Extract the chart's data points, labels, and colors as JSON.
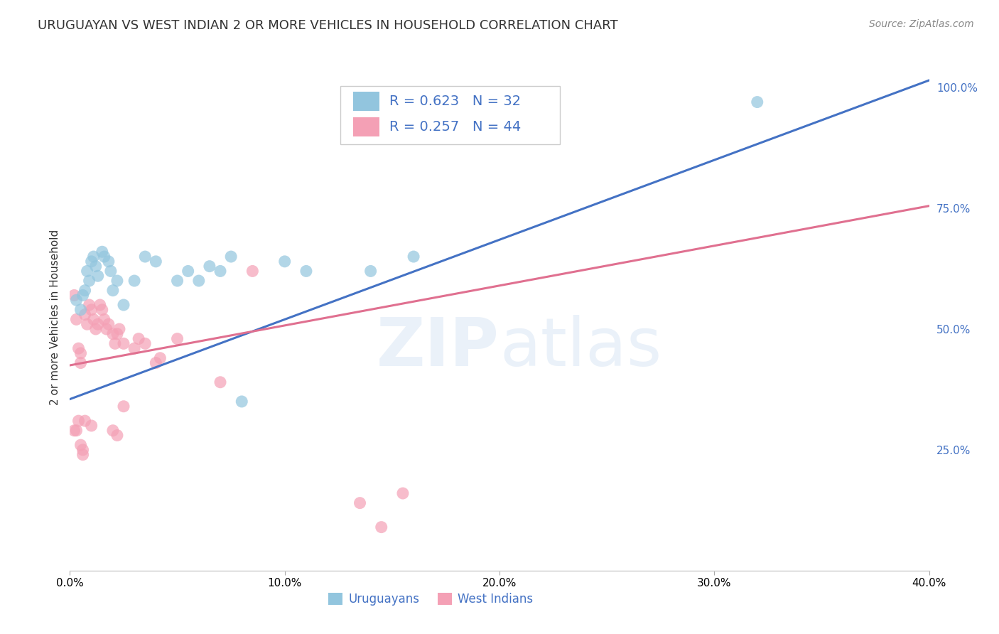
{
  "title": "URUGUAYAN VS WEST INDIAN 2 OR MORE VEHICLES IN HOUSEHOLD CORRELATION CHART",
  "source": "Source: ZipAtlas.com",
  "ylabel": "2 or more Vehicles in Household",
  "xlim": [
    0.0,
    0.4
  ],
  "ylim": [
    0.0,
    1.05
  ],
  "xticks": [
    0.0,
    0.1,
    0.2,
    0.3,
    0.4
  ],
  "xticklabels": [
    "0.0%",
    "10.0%",
    "20.0%",
    "30.0%",
    "40.0%"
  ],
  "yticks_right": [
    0.25,
    0.5,
    0.75,
    1.0
  ],
  "ytick_right_labels": [
    "25.0%",
    "50.0%",
    "75.0%",
    "100.0%"
  ],
  "watermark": "ZIPatlas",
  "legend_blue_label": "Uruguayans",
  "legend_pink_label": "West Indians",
  "blue_R": "R = 0.623",
  "blue_N": "N = 32",
  "pink_R": "R = 0.257",
  "pink_N": "N = 44",
  "blue_color": "#92c5de",
  "pink_color": "#f4a0b5",
  "blue_line_color": "#4472c4",
  "pink_line_color": "#e07090",
  "legend_text_color": "#4472c4",
  "blue_scatter": [
    [
      0.003,
      0.56
    ],
    [
      0.005,
      0.54
    ],
    [
      0.006,
      0.57
    ],
    [
      0.007,
      0.58
    ],
    [
      0.008,
      0.62
    ],
    [
      0.009,
      0.6
    ],
    [
      0.01,
      0.64
    ],
    [
      0.011,
      0.65
    ],
    [
      0.012,
      0.63
    ],
    [
      0.013,
      0.61
    ],
    [
      0.015,
      0.66
    ],
    [
      0.016,
      0.65
    ],
    [
      0.018,
      0.64
    ],
    [
      0.019,
      0.62
    ],
    [
      0.02,
      0.58
    ],
    [
      0.022,
      0.6
    ],
    [
      0.025,
      0.55
    ],
    [
      0.03,
      0.6
    ],
    [
      0.035,
      0.65
    ],
    [
      0.04,
      0.64
    ],
    [
      0.05,
      0.6
    ],
    [
      0.055,
      0.62
    ],
    [
      0.06,
      0.6
    ],
    [
      0.065,
      0.63
    ],
    [
      0.07,
      0.62
    ],
    [
      0.075,
      0.65
    ],
    [
      0.08,
      0.35
    ],
    [
      0.1,
      0.64
    ],
    [
      0.11,
      0.62
    ],
    [
      0.14,
      0.62
    ],
    [
      0.16,
      0.65
    ],
    [
      0.32,
      0.97
    ]
  ],
  "pink_scatter": [
    [
      0.002,
      0.57
    ],
    [
      0.003,
      0.52
    ],
    [
      0.004,
      0.46
    ],
    [
      0.005,
      0.45
    ],
    [
      0.005,
      0.43
    ],
    [
      0.007,
      0.53
    ],
    [
      0.008,
      0.51
    ],
    [
      0.009,
      0.55
    ],
    [
      0.01,
      0.54
    ],
    [
      0.011,
      0.52
    ],
    [
      0.012,
      0.5
    ],
    [
      0.013,
      0.51
    ],
    [
      0.014,
      0.55
    ],
    [
      0.015,
      0.54
    ],
    [
      0.016,
      0.52
    ],
    [
      0.017,
      0.5
    ],
    [
      0.018,
      0.51
    ],
    [
      0.02,
      0.49
    ],
    [
      0.021,
      0.47
    ],
    [
      0.022,
      0.49
    ],
    [
      0.023,
      0.5
    ],
    [
      0.025,
      0.47
    ],
    [
      0.03,
      0.46
    ],
    [
      0.032,
      0.48
    ],
    [
      0.035,
      0.47
    ],
    [
      0.04,
      0.43
    ],
    [
      0.042,
      0.44
    ],
    [
      0.05,
      0.48
    ],
    [
      0.002,
      0.29
    ],
    [
      0.003,
      0.29
    ],
    [
      0.004,
      0.31
    ],
    [
      0.005,
      0.26
    ],
    [
      0.006,
      0.25
    ],
    [
      0.006,
      0.24
    ],
    [
      0.007,
      0.31
    ],
    [
      0.01,
      0.3
    ],
    [
      0.02,
      0.29
    ],
    [
      0.022,
      0.28
    ],
    [
      0.025,
      0.34
    ],
    [
      0.07,
      0.39
    ],
    [
      0.085,
      0.62
    ],
    [
      0.135,
      0.14
    ],
    [
      0.145,
      0.09
    ],
    [
      0.155,
      0.16
    ]
  ],
  "blue_line_x": [
    0.0,
    0.4
  ],
  "blue_line_y": [
    0.355,
    1.015
  ],
  "pink_line_x": [
    0.0,
    0.4
  ],
  "pink_line_y": [
    0.425,
    0.755
  ],
  "background_color": "#ffffff",
  "grid_color": "#cccccc",
  "title_fontsize": 13,
  "axis_label_fontsize": 11,
  "tick_fontsize": 10,
  "legend_fontsize": 13,
  "source_fontsize": 10
}
